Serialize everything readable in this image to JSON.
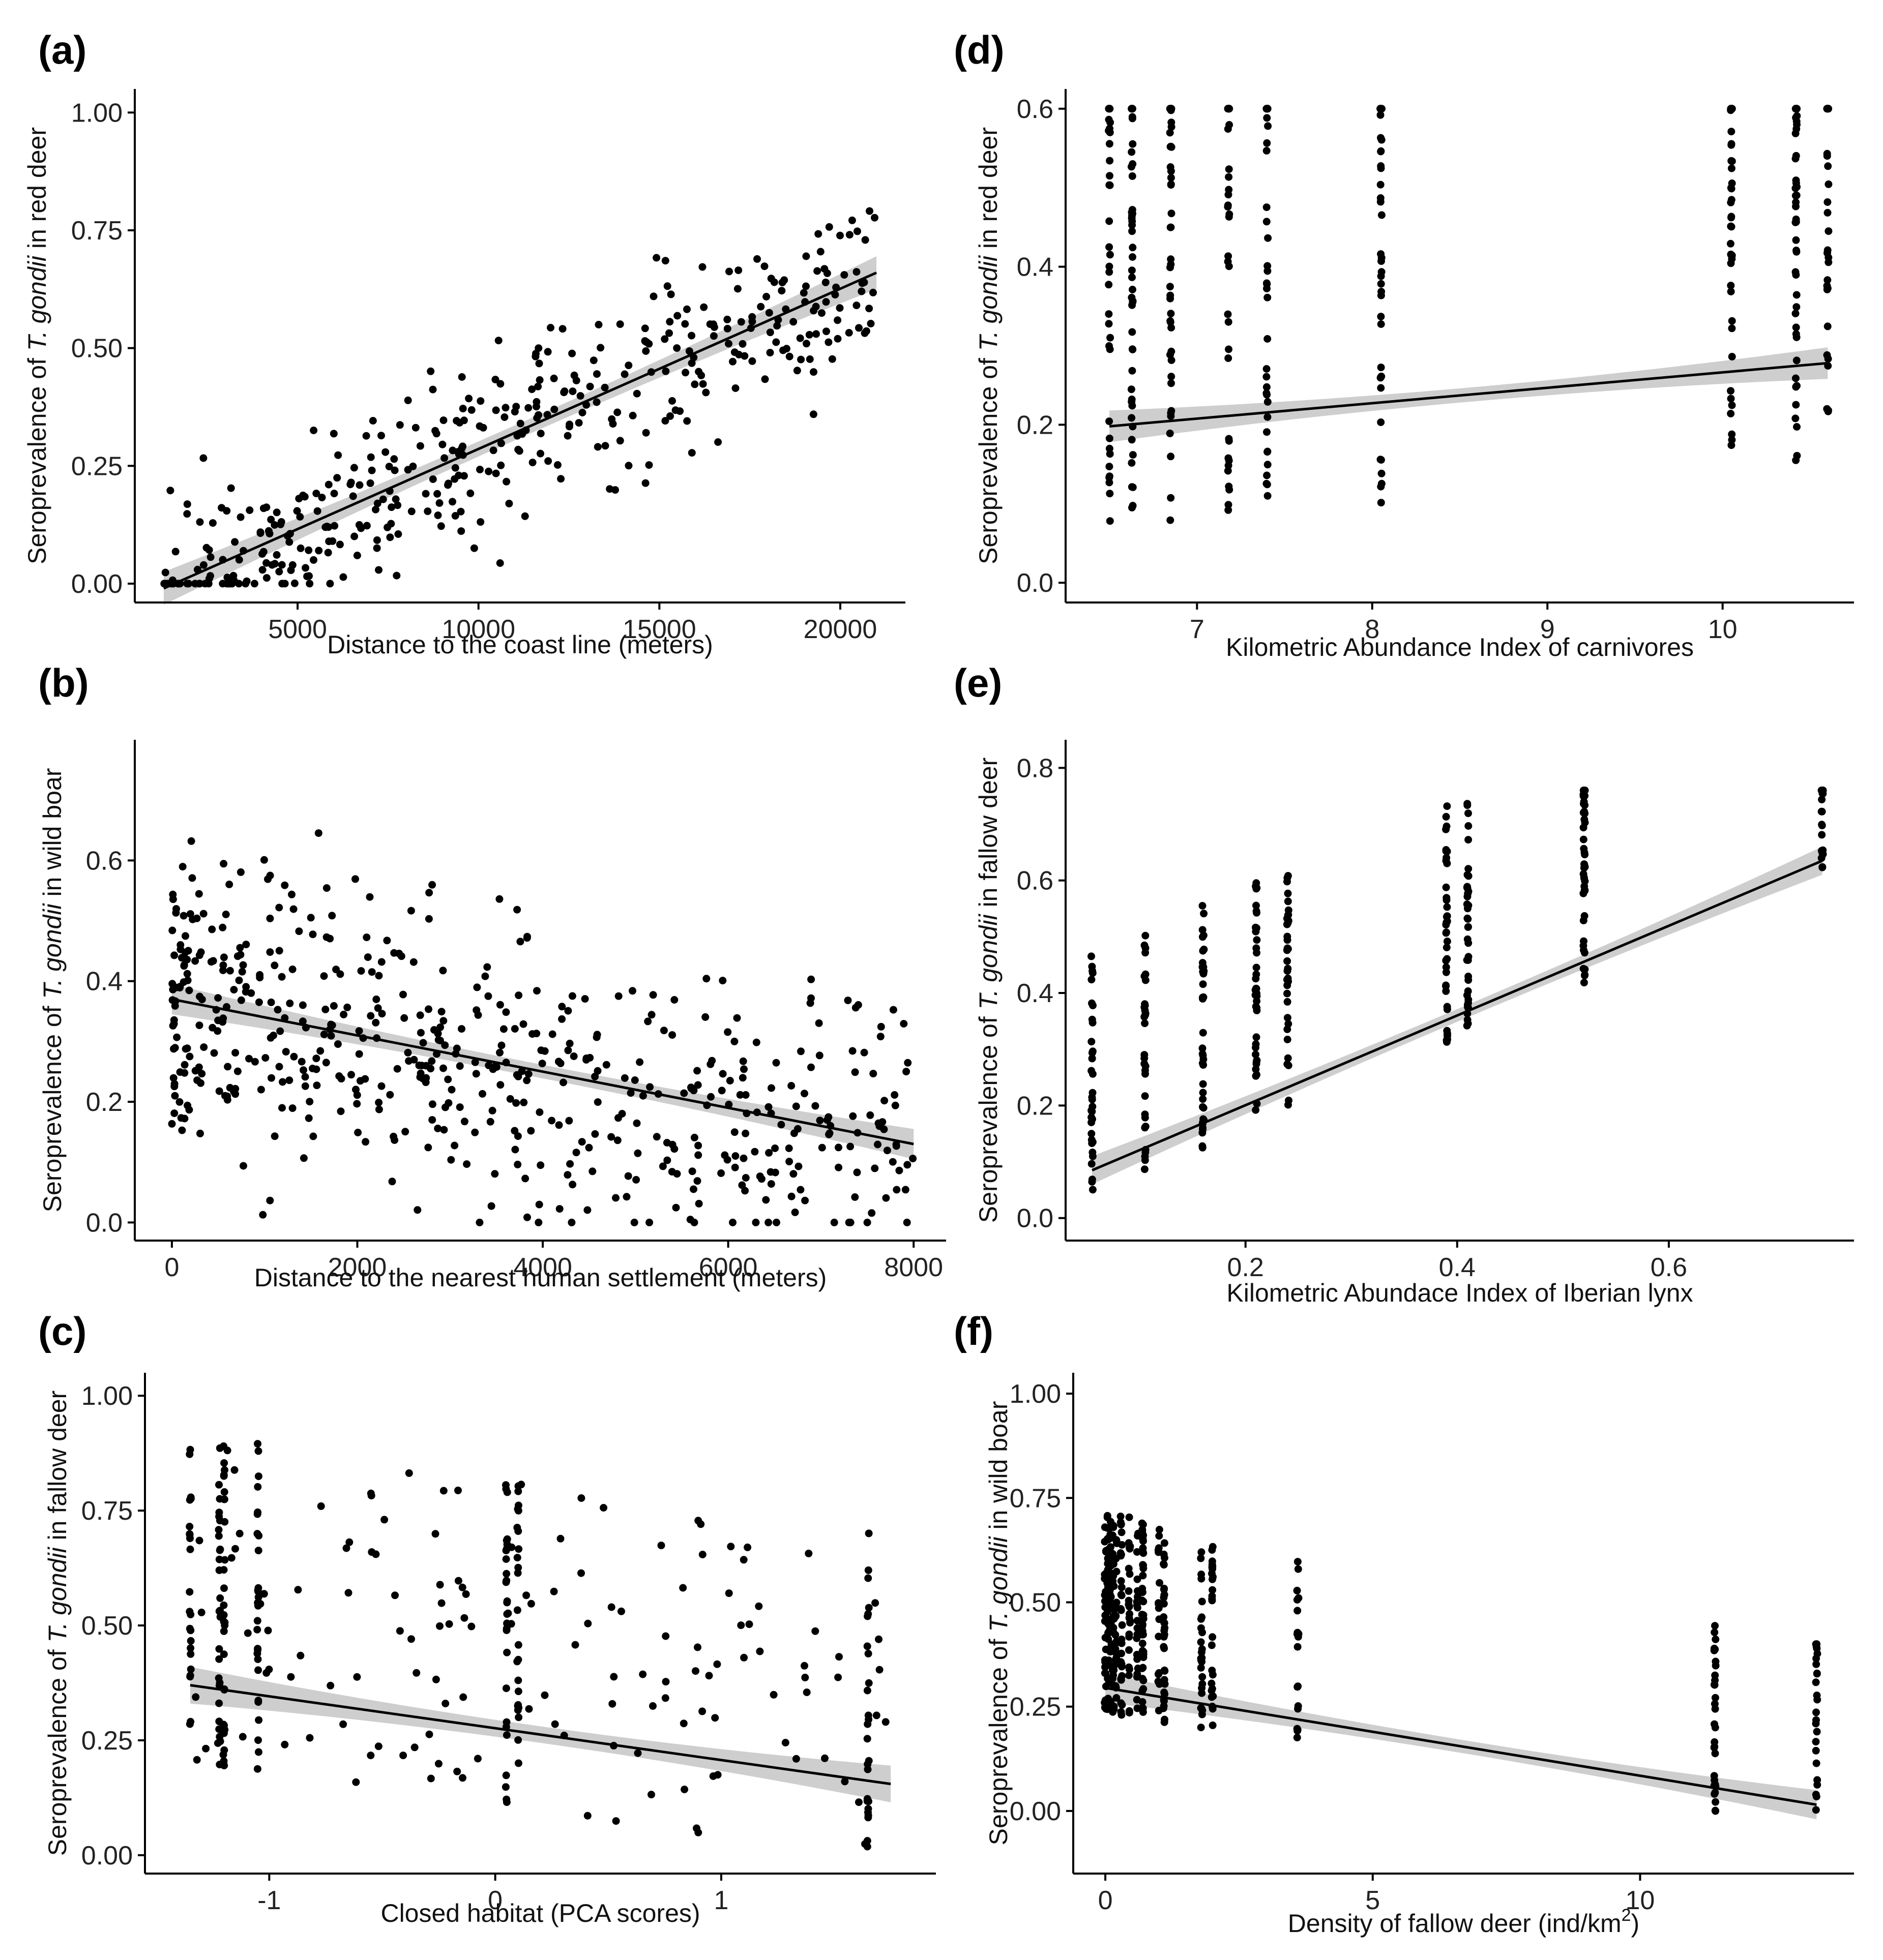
{
  "chart_data": [
    {
      "id": "a",
      "panel_label": "(a)",
      "type": "scatter",
      "xlabel": "Distance to the coast line (meters)",
      "ylabel_parts": [
        "Seroprevalence of ",
        "T. gondii",
        " in red deer"
      ],
      "xlim": [
        500,
        21800
      ],
      "ylim": [
        -0.04,
        1.05
      ],
      "xticks": [
        5000,
        10000,
        15000,
        20000
      ],
      "xtick_labels": [
        "5000",
        "10000",
        "15000",
        "20000"
      ],
      "yticks": [
        0,
        0.25,
        0.5,
        0.75,
        1.0
      ],
      "ytick_labels": [
        "0.00",
        "0.25",
        "0.50",
        "0.75",
        "1.00"
      ],
      "fit": {
        "x": [
          1300,
          21000
        ],
        "y": [
          -0.01,
          0.66
        ],
        "se": 0.035
      },
      "points": {
        "n": 420,
        "seed": 11,
        "model": "linear",
        "x_min": 1300,
        "x_max": 21000,
        "x_dist": "spread",
        "intercept": -0.05,
        "slope": 3.35e-05,
        "spread": 0.16,
        "y_min": 0.0,
        "y_max": 0.92
      }
    },
    {
      "id": "b",
      "panel_label": "(b)",
      "type": "scatter",
      "xlabel": "Distance to the nearest human settlement (meters)",
      "ylabel_parts": [
        "Seroprevalence of ",
        "T. gondii",
        " in wild boar"
      ],
      "xlim": [
        -400,
        8350
      ],
      "ylim": [
        -0.03,
        0.8
      ],
      "xticks": [
        0,
        2000,
        4000,
        6000,
        8000
      ],
      "xtick_labels": [
        "0",
        "2000",
        "4000",
        "6000",
        "8000"
      ],
      "yticks": [
        0,
        0.2,
        0.4,
        0.6
      ],
      "ytick_labels": [
        "0.0",
        "0.2",
        "0.4",
        "0.6"
      ],
      "fit": {
        "x": [
          0,
          8000
        ],
        "y": [
          0.37,
          0.13
        ],
        "se": 0.025
      },
      "points": {
        "n": 560,
        "seed": 23,
        "model": "linear",
        "x_min": 0,
        "x_max": 8000,
        "x_dist": "left",
        "intercept": 0.37,
        "slope": -3e-05,
        "spread": 0.2,
        "y_min": 0.0,
        "y_max": 0.72
      }
    },
    {
      "id": "c",
      "panel_label": "(c)",
      "type": "scatter",
      "xlabel": "Closed habitat (PCA scores)",
      "ylabel_parts": [
        "Seroprevalence of ",
        "T. gondii",
        " in fallow deer"
      ],
      "xlim": [
        -1.55,
        1.95
      ],
      "ylim": [
        -0.04,
        1.05
      ],
      "xticks": [
        -1,
        0,
        1
      ],
      "xtick_labels": [
        "-1",
        "0",
        "1"
      ],
      "yticks": [
        0,
        0.25,
        0.5,
        0.75,
        1.0
      ],
      "ytick_labels": [
        "0.00",
        "0.25",
        "0.50",
        "0.75",
        "1.00"
      ],
      "fit": {
        "x": [
          -1.35,
          1.75
        ],
        "y": [
          0.37,
          0.155
        ],
        "se": 0.04
      },
      "points": {
        "n": 330,
        "seed": 37,
        "model": "columns",
        "columns": [
          -1.35,
          -1.22,
          -1.2,
          -1.05,
          0.05,
          0.1,
          1.65
        ],
        "col_share": 0.55,
        "x_min": -1.35,
        "x_max": 1.75,
        "intercept": 0.28,
        "slope": -0.07,
        "spread": 0.3,
        "y_min": 0.0,
        "y_max": 0.97
      }
    },
    {
      "id": "d",
      "panel_label": "(d)",
      "type": "scatter",
      "xlabel": "Kilometric Abundance Index of carnivores",
      "ylabel_parts": [
        "Seroprevalence of ",
        "T. gondii",
        " in red deer"
      ],
      "xlim": [
        6.25,
        10.75
      ],
      "ylim": [
        -0.025,
        0.625
      ],
      "xticks": [
        7,
        8,
        9,
        10
      ],
      "xtick_labels": [
        "7",
        "8",
        "9",
        "10"
      ],
      "yticks": [
        0,
        0.2,
        0.4,
        0.6
      ],
      "ytick_labels": [
        "0.0",
        "0.2",
        "0.4",
        "0.6"
      ],
      "fit": {
        "x": [
          6.5,
          10.6
        ],
        "y": [
          0.198,
          0.278
        ],
        "se": 0.02
      },
      "points": {
        "n": 360,
        "seed": 41,
        "model": "columns",
        "columns": [
          6.5,
          6.63,
          6.85,
          7.18,
          7.4,
          8.05,
          10.05,
          10.42,
          10.6
        ],
        "col_share": 1.0,
        "x_min": 6.5,
        "x_max": 10.6,
        "intercept": 0.06,
        "slope": 0.02,
        "spread": 0.25,
        "y_min": 0.01,
        "y_max": 0.6
      }
    },
    {
      "id": "e",
      "panel_label": "(e)",
      "type": "scatter",
      "xlabel": "Kilometric Abundace Index of Iberian lynx",
      "ylabel_parts": [
        "Seroprevalence of ",
        "T. gondii",
        " in fallow deer"
      ],
      "xlim": [
        0.03,
        0.775
      ],
      "ylim": [
        -0.04,
        0.85
      ],
      "xticks": [
        0.2,
        0.4,
        0.6
      ],
      "xtick_labels": [
        "0.2",
        "0.4",
        "0.6"
      ],
      "yticks": [
        0,
        0.2,
        0.4,
        0.6,
        0.8
      ],
      "ytick_labels": [
        "0.0",
        "0.2",
        "0.4",
        "0.6",
        "0.8"
      ],
      "fit": {
        "x": [
          0.055,
          0.745
        ],
        "y": [
          0.085,
          0.635
        ],
        "se": 0.025
      },
      "points": {
        "n": 340,
        "seed": 53,
        "model": "columns",
        "columns": [
          0.055,
          0.105,
          0.16,
          0.21,
          0.24,
          0.39,
          0.41,
          0.52,
          0.745
        ],
        "col_share": 1.0,
        "x_min": 0.055,
        "x_max": 0.745,
        "intercept": 0.04,
        "slope": 0.8,
        "spread": 0.18,
        "y_min": 0.0,
        "y_max": 0.76
      }
    },
    {
      "id": "f",
      "panel_label": "(f)",
      "type": "scatter",
      "xlabel_parts": [
        "Density of fallow deer (ind/km",
        "2",
        ")"
      ],
      "ylabel_parts": [
        "Seroprevalence of ",
        "T. gondii",
        " in wild boar"
      ],
      "xlim": [
        -0.6,
        14.0
      ],
      "ylim": [
        -0.15,
        1.05
      ],
      "xticks": [
        0,
        5,
        10
      ],
      "xtick_labels": [
        "0",
        "5",
        "10"
      ],
      "yticks": [
        0,
        0.25,
        0.5,
        0.75,
        1.0
      ],
      "ytick_labels": [
        "0.00",
        "0.25",
        "0.50",
        "0.75",
        "1.00"
      ],
      "fit": {
        "x": [
          0,
          13.3
        ],
        "y": [
          0.295,
          0.015
        ],
        "se": 0.035
      },
      "points": {
        "n": 430,
        "seed": 67,
        "model": "columns",
        "columns": [
          0.0,
          0.05,
          0.1,
          0.15,
          0.2,
          0.3,
          0.45,
          0.6,
          0.7,
          1.0,
          1.1,
          1.8,
          2.0,
          3.6,
          11.4,
          13.3
        ],
        "col_share": 1.0,
        "x_min": 0,
        "x_max": 13.3,
        "intercept": 0.3,
        "slope": -0.021,
        "spread": 0.2,
        "y_min": 0.0,
        "y_max": 0.72
      }
    }
  ]
}
